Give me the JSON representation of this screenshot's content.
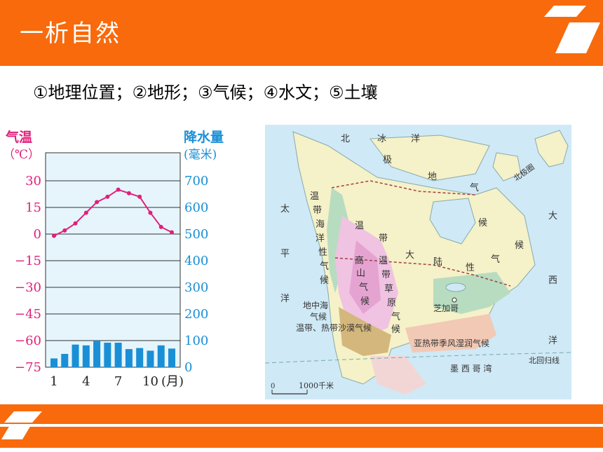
{
  "header": {
    "title": "一析自然"
  },
  "subtitle": "①地理位置；②地形；③气候；④水文；⑤土壤",
  "colors": {
    "accent": "#f86a0c",
    "temp_color": "#e0207a",
    "precip_color": "#1a8fd6"
  },
  "chart_data": {
    "type": "bar",
    "left_axis_title": "气温",
    "left_axis_unit": "（℃）",
    "right_axis_title": "降水量",
    "right_axis_unit": "(毫米)",
    "temp_ticks": [
      "30",
      "15",
      "0",
      "−15",
      "−30",
      "−45",
      "−60",
      "−75"
    ],
    "precip_ticks": [
      "700",
      "600",
      "500",
      "400",
      "300",
      "200",
      "100",
      "0"
    ],
    "x_ticks": [
      "1",
      "4",
      "7",
      "10"
    ],
    "x_unit": "(月)",
    "temperature_c": [
      -1,
      2,
      6,
      12,
      18,
      21,
      25,
      23,
      21,
      12,
      4,
      1
    ],
    "precipitation_mm": [
      33,
      50,
      85,
      82,
      100,
      92,
      92,
      68,
      72,
      62,
      82,
      70
    ],
    "temp_ylim": [
      -75,
      30
    ],
    "precip_ylim": [
      0,
      700
    ]
  },
  "map": {
    "labels": {
      "north_ice": [
        "北",
        "冰",
        "洋"
      ],
      "pacific": [
        "太",
        "平",
        "洋"
      ],
      "atlantic": [
        "大",
        "西",
        "洋"
      ],
      "polar": [
        "极",
        "地",
        "气",
        "候"
      ],
      "temperate_maritime": [
        "温",
        "带",
        "海",
        "洋",
        "性",
        "气",
        "候"
      ],
      "temperate_continental": [
        "温",
        "带",
        "大",
        "陆",
        "性",
        "气",
        "候"
      ],
      "highland": [
        "高",
        "山",
        "气",
        "候"
      ],
      "temperate_grassland": [
        "温",
        "带",
        "草",
        "原",
        "气",
        "候"
      ],
      "mediterranean": [
        "地中海",
        "气候"
      ],
      "desert": "温带、热带沙漠气候",
      "subtropical": "亚热带季风湿润气候",
      "chicago": "芝加哥",
      "gulf": "墨 西 哥 湾",
      "tropic": "北回归线",
      "arctic_circle": "北极圈",
      "scale": "1000千米",
      "scale_zero": "0"
    }
  }
}
